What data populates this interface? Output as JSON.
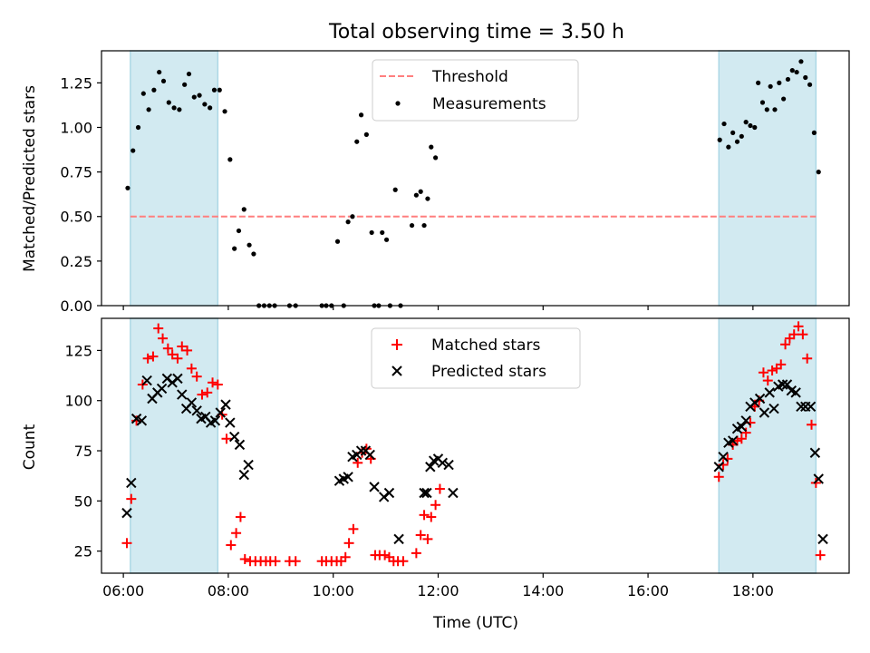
{
  "title": "Total observing time = 3.50 h",
  "chart_data": [
    {
      "type": "scatter",
      "title": "Total observing time = 3.50 h",
      "xlabel": "",
      "ylabel": "Matched/Predicted stars",
      "xlim": [
        "05:35",
        "19:50"
      ],
      "ylim": [
        0,
        1.43
      ],
      "x_ticks": [
        "06:00",
        "08:00",
        "10:00",
        "12:00",
        "14:00",
        "16:00",
        "18:00"
      ],
      "x_tick_labels_visible": false,
      "y_ticks": [
        0.0,
        0.25,
        0.5,
        0.75,
        1.0,
        1.25
      ],
      "y_tick_labels": [
        "0.00",
        "0.25",
        "0.50",
        "0.75",
        "1.00",
        "1.25"
      ],
      "legend_position": "top-center",
      "shaded_intervals": [
        [
          "06:08",
          "07:48"
        ],
        [
          "17:21",
          "19:12"
        ]
      ],
      "threshold": {
        "name": "Threshold",
        "y": 0.5,
        "color": "#ff7f7f",
        "style": "dashed"
      },
      "series": [
        {
          "name": "Measurements",
          "color": "#000000",
          "marker": "dot",
          "points": [
            [
              "06:05",
              0.66
            ],
            [
              "06:11",
              0.87
            ],
            [
              "06:17",
              1.0
            ],
            [
              "06:23",
              1.19
            ],
            [
              "06:29",
              1.1
            ],
            [
              "06:35",
              1.21
            ],
            [
              "06:41",
              1.31
            ],
            [
              "06:46",
              1.26
            ],
            [
              "06:52",
              1.14
            ],
            [
              "06:58",
              1.11
            ],
            [
              "07:04",
              1.1
            ],
            [
              "07:10",
              1.24
            ],
            [
              "07:15",
              1.3
            ],
            [
              "07:21",
              1.17
            ],
            [
              "07:27",
              1.18
            ],
            [
              "07:33",
              1.13
            ],
            [
              "07:39",
              1.11
            ],
            [
              "07:44",
              1.21
            ],
            [
              "07:50",
              1.21
            ],
            [
              "07:56",
              1.09
            ],
            [
              "08:02",
              0.82
            ],
            [
              "08:07",
              0.32
            ],
            [
              "08:12",
              0.42
            ],
            [
              "08:18",
              0.54
            ],
            [
              "08:24",
              0.34
            ],
            [
              "08:29",
              0.29
            ],
            [
              "08:35",
              0.0
            ],
            [
              "08:41",
              0.0
            ],
            [
              "08:47",
              0.0
            ],
            [
              "08:53",
              0.0
            ],
            [
              "09:10",
              0.0
            ],
            [
              "09:17",
              0.0
            ],
            [
              "09:47",
              0.0
            ],
            [
              "09:52",
              0.0
            ],
            [
              "09:58",
              0.0
            ],
            [
              "10:05",
              0.36
            ],
            [
              "10:12",
              0.0
            ],
            [
              "10:17",
              0.47
            ],
            [
              "10:22",
              0.5
            ],
            [
              "10:27",
              0.92
            ],
            [
              "10:32",
              1.07
            ],
            [
              "10:38",
              0.96
            ],
            [
              "10:44",
              0.41
            ],
            [
              "10:47",
              0.0
            ],
            [
              "10:52",
              0.0
            ],
            [
              "10:56",
              0.41
            ],
            [
              "11:01",
              0.37
            ],
            [
              "11:05",
              0.0
            ],
            [
              "11:11",
              0.65
            ],
            [
              "11:17",
              0.0
            ],
            [
              "11:30",
              0.45
            ],
            [
              "11:35",
              0.62
            ],
            [
              "11:40",
              0.64
            ],
            [
              "11:44",
              0.45
            ],
            [
              "11:48",
              0.6
            ],
            [
              "11:52",
              0.89
            ],
            [
              "11:57",
              0.83
            ],
            [
              "17:22",
              0.93
            ],
            [
              "17:27",
              1.02
            ],
            [
              "17:32",
              0.89
            ],
            [
              "17:37",
              0.97
            ],
            [
              "17:42",
              0.92
            ],
            [
              "17:47",
              0.95
            ],
            [
              "17:52",
              1.03
            ],
            [
              "17:57",
              1.01
            ],
            [
              "18:02",
              1.0
            ],
            [
              "18:06",
              1.25
            ],
            [
              "18:11",
              1.14
            ],
            [
              "18:16",
              1.1
            ],
            [
              "18:20",
              1.23
            ],
            [
              "18:25",
              1.1
            ],
            [
              "18:30",
              1.25
            ],
            [
              "18:35",
              1.16
            ],
            [
              "18:40",
              1.27
            ],
            [
              "18:45",
              1.32
            ],
            [
              "18:50",
              1.31
            ],
            [
              "18:55",
              1.37
            ],
            [
              "19:00",
              1.28
            ],
            [
              "19:05",
              1.24
            ],
            [
              "19:10",
              0.97
            ],
            [
              "19:15",
              0.75
            ]
          ]
        }
      ]
    },
    {
      "type": "scatter",
      "title": "",
      "xlabel": "Time (UTC)",
      "ylabel": "Count",
      "xlim": [
        "05:35",
        "19:50"
      ],
      "ylim": [
        14,
        141
      ],
      "x_ticks": [
        "06:00",
        "08:00",
        "10:00",
        "12:00",
        "14:00",
        "16:00",
        "18:00"
      ],
      "x_tick_labels": [
        "06:00",
        "08:00",
        "10:00",
        "12:00",
        "14:00",
        "16:00",
        "18:00"
      ],
      "y_ticks": [
        25,
        50,
        75,
        100,
        125
      ],
      "y_tick_labels": [
        "25",
        "50",
        "75",
        "100",
        "125"
      ],
      "legend_position": "top-center",
      "shaded_intervals": [
        [
          "06:08",
          "07:48"
        ],
        [
          "17:21",
          "19:12"
        ]
      ],
      "series": [
        {
          "name": "Matched stars",
          "color": "#ff0000",
          "marker": "plus",
          "points": [
            [
              "06:04",
              29
            ],
            [
              "06:09",
              51
            ],
            [
              "06:15",
              90
            ],
            [
              "06:22",
              108
            ],
            [
              "06:28",
              121
            ],
            [
              "06:34",
              122
            ],
            [
              "06:40",
              136
            ],
            [
              "06:45",
              131
            ],
            [
              "06:51",
              126
            ],
            [
              "06:56",
              123
            ],
            [
              "07:02",
              121
            ],
            [
              "07:07",
              127
            ],
            [
              "07:13",
              125
            ],
            [
              "07:18",
              116
            ],
            [
              "07:24",
              112
            ],
            [
              "07:30",
              103
            ],
            [
              "07:36",
              104
            ],
            [
              "07:42",
              109
            ],
            [
              "07:48",
              108
            ],
            [
              "07:53",
              93
            ],
            [
              "07:58",
              81
            ],
            [
              "08:03",
              28
            ],
            [
              "08:09",
              34
            ],
            [
              "08:14",
              42
            ],
            [
              "08:19",
              21
            ],
            [
              "08:25",
              20
            ],
            [
              "08:31",
              20
            ],
            [
              "08:37",
              20
            ],
            [
              "08:43",
              20
            ],
            [
              "08:48",
              20
            ],
            [
              "08:54",
              20
            ],
            [
              "09:10",
              20
            ],
            [
              "09:17",
              20
            ],
            [
              "09:47",
              20
            ],
            [
              "09:52",
              20
            ],
            [
              "09:58",
              20
            ],
            [
              "10:04",
              20
            ],
            [
              "10:09",
              20
            ],
            [
              "10:14",
              22
            ],
            [
              "10:18",
              29
            ],
            [
              "10:23",
              36
            ],
            [
              "10:28",
              69
            ],
            [
              "10:33",
              74
            ],
            [
              "10:38",
              76
            ],
            [
              "10:43",
              71
            ],
            [
              "10:48",
              23
            ],
            [
              "10:53",
              23
            ],
            [
              "10:59",
              23
            ],
            [
              "11:04",
              22
            ],
            [
              "11:09",
              20
            ],
            [
              "11:14",
              20
            ],
            [
              "11:20",
              20
            ],
            [
              "11:35",
              24
            ],
            [
              "11:40",
              33
            ],
            [
              "11:44",
              43
            ],
            [
              "11:48",
              31
            ],
            [
              "11:52",
              42
            ],
            [
              "11:57",
              48
            ],
            [
              "12:02",
              56
            ],
            [
              "17:21",
              62
            ],
            [
              "17:26",
              68
            ],
            [
              "17:31",
              71
            ],
            [
              "17:37",
              78
            ],
            [
              "17:42",
              80
            ],
            [
              "17:47",
              81
            ],
            [
              "17:52",
              84
            ],
            [
              "17:57",
              89
            ],
            [
              "18:02",
              97
            ],
            [
              "18:07",
              100
            ],
            [
              "18:12",
              114
            ],
            [
              "18:17",
              110
            ],
            [
              "18:22",
              115
            ],
            [
              "18:27",
              116
            ],
            [
              "18:32",
              118
            ],
            [
              "18:37",
              128
            ],
            [
              "18:42",
              131
            ],
            [
              "18:47",
              133
            ],
            [
              "18:52",
              137
            ],
            [
              "18:57",
              133
            ],
            [
              "19:02",
              121
            ],
            [
              "19:07",
              88
            ],
            [
              "19:12",
              59
            ],
            [
              "19:17",
              23
            ]
          ]
        },
        {
          "name": "Predicted stars",
          "color": "#000000",
          "marker": "x",
          "points": [
            [
              "06:04",
              44
            ],
            [
              "06:09",
              59
            ],
            [
              "06:15",
              91
            ],
            [
              "06:21",
              90
            ],
            [
              "06:27",
              110
            ],
            [
              "06:33",
              101
            ],
            [
              "06:39",
              104
            ],
            [
              "06:44",
              106
            ],
            [
              "06:50",
              111
            ],
            [
              "06:56",
              109
            ],
            [
              "07:02",
              111
            ],
            [
              "07:07",
              103
            ],
            [
              "07:12",
              96
            ],
            [
              "07:18",
              99
            ],
            [
              "07:24",
              95
            ],
            [
              "07:29",
              91
            ],
            [
              "07:34",
              92
            ],
            [
              "07:40",
              89
            ],
            [
              "07:45",
              90
            ],
            [
              "07:51",
              94
            ],
            [
              "07:57",
              98
            ],
            [
              "08:02",
              89
            ],
            [
              "08:07",
              82
            ],
            [
              "08:13",
              78
            ],
            [
              "08:18",
              63
            ],
            [
              "08:23",
              68
            ],
            [
              "10:07",
              60
            ],
            [
              "10:12",
              61
            ],
            [
              "10:17",
              62
            ],
            [
              "10:22",
              72
            ],
            [
              "10:27",
              73
            ],
            [
              "10:32",
              75
            ],
            [
              "10:37",
              75
            ],
            [
              "10:42",
              73
            ],
            [
              "10:47",
              57
            ],
            [
              "10:58",
              52
            ],
            [
              "11:04",
              54
            ],
            [
              "11:15",
              31
            ],
            [
              "11:44",
              54
            ],
            [
              "11:47",
              54
            ],
            [
              "11:51",
              67
            ],
            [
              "11:55",
              70
            ],
            [
              "12:00",
              71
            ],
            [
              "12:05",
              69
            ],
            [
              "12:12",
              68
            ],
            [
              "12:17",
              54
            ],
            [
              "17:21",
              67
            ],
            [
              "17:26",
              72
            ],
            [
              "17:32",
              79
            ],
            [
              "17:37",
              80
            ],
            [
              "17:42",
              86
            ],
            [
              "17:47",
              87
            ],
            [
              "17:52",
              90
            ],
            [
              "17:57",
              97
            ],
            [
              "18:02",
              99
            ],
            [
              "18:08",
              101
            ],
            [
              "18:13",
              94
            ],
            [
              "18:19",
              104
            ],
            [
              "18:24",
              96
            ],
            [
              "18:29",
              107
            ],
            [
              "18:34",
              108
            ],
            [
              "18:39",
              108
            ],
            [
              "18:44",
              105
            ],
            [
              "18:49",
              104
            ],
            [
              "18:55",
              97
            ],
            [
              "19:00",
              97
            ],
            [
              "19:06",
              97
            ],
            [
              "19:11",
              74
            ],
            [
              "19:15",
              61
            ],
            [
              "19:20",
              31
            ]
          ]
        }
      ]
    }
  ],
  "colors": {
    "shade": "#add8e6",
    "axis": "#000000"
  }
}
